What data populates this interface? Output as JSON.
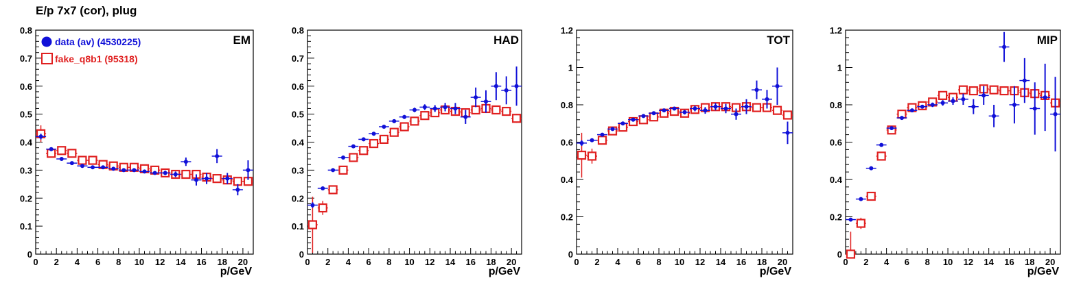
{
  "page": {
    "title": "E/p 7x7 (cor), plug"
  },
  "colors": {
    "data": "#1010d8",
    "fake": "#e02020",
    "axis": "#000000"
  },
  "legend": {
    "data_label": "data (av) (4530225)",
    "fake_label": "fake_q8b1 (95318)"
  },
  "chart_data": [
    {
      "type": "scatter",
      "panel_label": "EM",
      "xlabel": "p/GeV",
      "xlim": [
        0,
        21
      ],
      "ylim": [
        0,
        0.8
      ],
      "xticks": [
        "0",
        "2",
        "4",
        "6",
        "8",
        "10",
        "12",
        "14",
        "16",
        "18",
        "20"
      ],
      "yticks": [
        "0",
        "0.1",
        "0.2",
        "0.3",
        "0.4",
        "0.5",
        "0.6",
        "0.7",
        "0.8"
      ],
      "x": [
        0.5,
        1.5,
        2.5,
        3.5,
        4.5,
        5.5,
        6.5,
        7.5,
        8.5,
        9.5,
        10.5,
        11.5,
        12.5,
        13.5,
        14.5,
        15.5,
        16.5,
        17.5,
        18.5,
        19.5,
        20.5
      ],
      "series": [
        {
          "name": "data (av) (4530225)",
          "values": [
            0.42,
            0.375,
            0.34,
            0.325,
            0.315,
            0.31,
            0.31,
            0.305,
            0.3,
            0.3,
            0.295,
            0.29,
            0.29,
            0.285,
            0.33,
            0.265,
            0.27,
            0.35,
            0.27,
            0.23,
            0.3
          ],
          "errors": [
            0.01,
            0.005,
            0.003,
            0.003,
            0.003,
            0.003,
            0.003,
            0.003,
            0.004,
            0.004,
            0.005,
            0.006,
            0.008,
            0.01,
            0.015,
            0.02,
            0.02,
            0.025,
            0.02,
            0.02,
            0.035
          ]
        },
        {
          "name": "fake_q8b1 (95318)",
          "values": [
            0.43,
            0.36,
            0.37,
            0.36,
            0.335,
            0.335,
            0.32,
            0.315,
            0.31,
            0.31,
            0.305,
            0.3,
            0.29,
            0.285,
            0.285,
            0.285,
            0.275,
            0.27,
            0.265,
            0.26,
            0.26
          ],
          "errors": [
            0.03,
            0.01,
            0.008,
            0.006,
            0.005,
            0.005,
            0.005,
            0.005,
            0.005,
            0.005,
            0.005,
            0.005,
            0.006,
            0.006,
            0.006,
            0.008,
            0.008,
            0.01,
            0.01,
            0.012,
            0.015
          ]
        }
      ]
    },
    {
      "type": "scatter",
      "panel_label": "HAD",
      "xlabel": "p/GeV",
      "xlim": [
        0,
        21
      ],
      "ylim": [
        0,
        0.8
      ],
      "xticks": [
        "0",
        "2",
        "4",
        "6",
        "8",
        "10",
        "12",
        "14",
        "16",
        "18",
        "20"
      ],
      "yticks": [
        "0",
        "0.1",
        "0.2",
        "0.3",
        "0.4",
        "0.5",
        "0.6",
        "0.7",
        "0.8"
      ],
      "x": [
        0.5,
        1.5,
        2.5,
        3.5,
        4.5,
        5.5,
        6.5,
        7.5,
        8.5,
        9.5,
        10.5,
        11.5,
        12.5,
        13.5,
        14.5,
        15.5,
        16.5,
        17.5,
        18.5,
        19.5,
        20.5
      ],
      "series": [
        {
          "name": "data (av) (4530225)",
          "values": [
            0.175,
            0.235,
            0.3,
            0.345,
            0.385,
            0.41,
            0.43,
            0.455,
            0.475,
            0.49,
            0.515,
            0.525,
            0.52,
            0.525,
            0.52,
            0.49,
            0.56,
            0.545,
            0.6,
            0.585,
            0.6
          ],
          "errors": [
            0.01,
            0.005,
            0.004,
            0.004,
            0.004,
            0.004,
            0.004,
            0.005,
            0.006,
            0.007,
            0.008,
            0.01,
            0.012,
            0.015,
            0.02,
            0.025,
            0.035,
            0.04,
            0.05,
            0.05,
            0.07
          ]
        },
        {
          "name": "fake_q8b1 (95318)",
          "values": [
            0.105,
            0.165,
            0.23,
            0.3,
            0.345,
            0.37,
            0.395,
            0.41,
            0.435,
            0.455,
            0.475,
            0.495,
            0.505,
            0.515,
            0.51,
            0.505,
            0.515,
            0.52,
            0.515,
            0.51,
            0.485
          ],
          "errors": [
            0.1,
            0.025,
            0.015,
            0.01,
            0.008,
            0.007,
            0.007,
            0.007,
            0.007,
            0.007,
            0.007,
            0.008,
            0.008,
            0.008,
            0.009,
            0.01,
            0.01,
            0.011,
            0.012,
            0.014,
            0.016
          ]
        }
      ]
    },
    {
      "type": "scatter",
      "panel_label": "TOT",
      "xlabel": "p/GeV",
      "xlim": [
        0,
        21
      ],
      "ylim": [
        0,
        1.2
      ],
      "xticks": [
        "0",
        "2",
        "4",
        "6",
        "8",
        "10",
        "12",
        "14",
        "16",
        "18",
        "20"
      ],
      "yticks": [
        "0",
        "0.2",
        "0.4",
        "0.6",
        "0.8",
        "1",
        "1.2"
      ],
      "x": [
        0.5,
        1.5,
        2.5,
        3.5,
        4.5,
        5.5,
        6.5,
        7.5,
        8.5,
        9.5,
        10.5,
        11.5,
        12.5,
        13.5,
        14.5,
        15.5,
        16.5,
        17.5,
        18.5,
        19.5,
        20.5
      ],
      "series": [
        {
          "name": "data (av) (4530225)",
          "values": [
            0.595,
            0.61,
            0.64,
            0.67,
            0.7,
            0.72,
            0.74,
            0.755,
            0.77,
            0.78,
            0.76,
            0.78,
            0.77,
            0.79,
            0.78,
            0.75,
            0.79,
            0.88,
            0.83,
            0.9,
            0.65
          ],
          "errors": [
            0.015,
            0.007,
            0.005,
            0.005,
            0.005,
            0.005,
            0.005,
            0.006,
            0.007,
            0.009,
            0.012,
            0.015,
            0.018,
            0.02,
            0.025,
            0.03,
            0.04,
            0.05,
            0.05,
            0.1,
            0.06
          ]
        },
        {
          "name": "fake_q8b1 (95318)",
          "values": [
            0.53,
            0.525,
            0.61,
            0.66,
            0.68,
            0.71,
            0.72,
            0.735,
            0.755,
            0.765,
            0.755,
            0.775,
            0.785,
            0.79,
            0.79,
            0.785,
            0.79,
            0.785,
            0.785,
            0.77,
            0.745
          ],
          "errors": [
            0.12,
            0.04,
            0.02,
            0.015,
            0.012,
            0.01,
            0.01,
            0.01,
            0.01,
            0.01,
            0.01,
            0.01,
            0.01,
            0.012,
            0.012,
            0.012,
            0.014,
            0.015,
            0.016,
            0.018,
            0.02
          ]
        }
      ]
    },
    {
      "type": "scatter",
      "panel_label": "MIP",
      "xlabel": "p/GeV",
      "xlim": [
        0,
        21
      ],
      "ylim": [
        0,
        1.2
      ],
      "xticks": [
        "0",
        "2",
        "4",
        "6",
        "8",
        "10",
        "12",
        "14",
        "16",
        "18",
        "20"
      ],
      "yticks": [
        "0",
        "0.2",
        "0.4",
        "0.6",
        "0.8",
        "1",
        "1.2"
      ],
      "x": [
        0.5,
        1.5,
        2.5,
        3.5,
        4.5,
        5.5,
        6.5,
        7.5,
        8.5,
        9.5,
        10.5,
        11.5,
        12.5,
        13.5,
        14.5,
        15.5,
        16.5,
        17.5,
        18.5,
        19.5,
        20.5
      ],
      "series": [
        {
          "name": "data (av) (4530225)",
          "values": [
            0.185,
            0.295,
            0.46,
            0.585,
            0.675,
            0.73,
            0.77,
            0.79,
            0.8,
            0.81,
            0.82,
            0.83,
            0.79,
            0.85,
            0.74,
            1.11,
            0.8,
            0.93,
            0.78,
            0.84,
            0.75
          ],
          "errors": [
            0.008,
            0.005,
            0.005,
            0.005,
            0.006,
            0.007,
            0.008,
            0.01,
            0.012,
            0.015,
            0.02,
            0.03,
            0.04,
            0.05,
            0.06,
            0.08,
            0.1,
            0.12,
            0.14,
            0.18,
            0.2
          ]
        },
        {
          "name": "fake_q8b1 (95318)",
          "values": [
            0.0,
            0.165,
            0.31,
            0.525,
            0.665,
            0.75,
            0.785,
            0.795,
            0.815,
            0.85,
            0.84,
            0.88,
            0.875,
            0.885,
            0.88,
            0.875,
            0.875,
            0.865,
            0.86,
            0.85,
            0.81
          ],
          "errors": [
            0.12,
            0.03,
            0.02,
            0.015,
            0.012,
            0.01,
            0.01,
            0.01,
            0.01,
            0.01,
            0.01,
            0.01,
            0.01,
            0.012,
            0.012,
            0.012,
            0.014,
            0.015,
            0.016,
            0.018,
            0.02
          ]
        }
      ]
    }
  ]
}
